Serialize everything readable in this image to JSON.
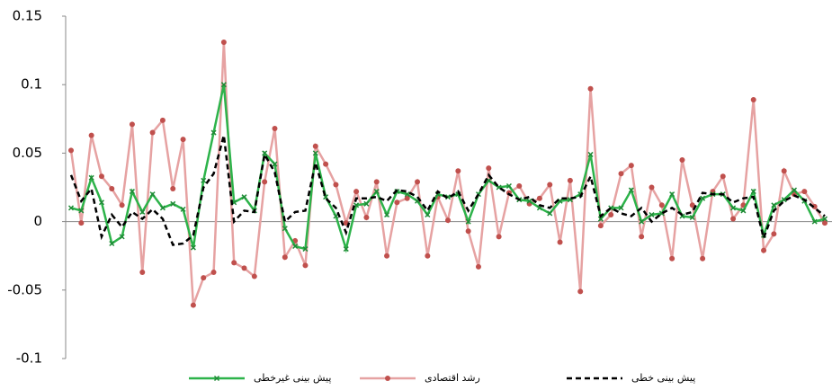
{
  "chart_data": {
    "type": "line",
    "ylim": [
      -0.1,
      0.15
    ],
    "yticks": [
      -0.1,
      -0.05,
      0,
      0.05,
      0.1,
      0.15
    ],
    "series": [
      {
        "name": "پیش بینی غیرخطی",
        "color": "#2db34a",
        "marker": "x",
        "dash": false,
        "values": [
          0.01,
          0.008,
          0.032,
          0.014,
          -0.016,
          -0.011,
          0.022,
          0.007,
          0.02,
          0.01,
          0.013,
          0.009,
          -0.019,
          0.03,
          0.065,
          0.1,
          0.014,
          0.018,
          0.008,
          0.05,
          0.042,
          -0.005,
          -0.018,
          -0.02,
          0.05,
          0.018,
          0.004,
          -0.02,
          0.012,
          0.013,
          0.022,
          0.005,
          0.022,
          0.02,
          0.015,
          0.005,
          0.02,
          0.018,
          0.02,
          0.0,
          0.02,
          0.03,
          0.025,
          0.026,
          0.016,
          0.015,
          0.01,
          0.006,
          0.015,
          0.016,
          0.02,
          0.049,
          0.002,
          0.01,
          0.01,
          0.023,
          0.0,
          0.005,
          0.006,
          0.02,
          0.004,
          0.003,
          0.017,
          0.02,
          0.02,
          0.01,
          0.008,
          0.022,
          -0.01,
          0.012,
          0.016,
          0.023,
          0.015,
          0.0,
          0.002
        ]
      },
      {
        "name": "رشد اقتصادی",
        "color": "#e6a2a2",
        "marker": "circle",
        "dash": false,
        "values": [
          0.052,
          -0.001,
          0.063,
          0.033,
          0.024,
          0.012,
          0.071,
          -0.037,
          0.065,
          0.074,
          0.024,
          0.06,
          -0.061,
          -0.041,
          -0.037,
          0.131,
          -0.03,
          -0.034,
          -0.04,
          0.029,
          0.068,
          -0.026,
          -0.014,
          -0.032,
          0.055,
          0.042,
          0.027,
          -0.001,
          0.022,
          0.003,
          0.029,
          -0.025,
          0.014,
          0.017,
          0.029,
          -0.025,
          0.018,
          0.001,
          0.037,
          -0.007,
          -0.033,
          0.039,
          -0.011,
          0.021,
          0.026,
          0.013,
          0.017,
          0.027,
          -0.015,
          0.03,
          -0.051,
          0.097,
          -0.003,
          0.005,
          0.035,
          0.041,
          -0.011,
          0.025,
          0.012,
          -0.027,
          0.045,
          0.012,
          -0.027,
          0.022,
          0.033,
          0.002,
          0.012,
          0.089,
          -0.021,
          -0.009,
          0.037,
          0.02,
          0.022,
          0.011,
          -0.001
        ]
      },
      {
        "name": "پیش بینی خطی",
        "color": "#000000",
        "marker": "none",
        "dash": true,
        "values": [
          0.034,
          0.015,
          0.024,
          -0.011,
          0.005,
          -0.004,
          0.007,
          0.002,
          0.009,
          0.002,
          -0.017,
          -0.016,
          -0.01,
          0.025,
          0.035,
          0.063,
          0.0,
          0.008,
          0.007,
          0.049,
          0.036,
          0.0,
          0.007,
          0.008,
          0.043,
          0.017,
          0.01,
          -0.008,
          0.017,
          0.017,
          0.018,
          0.015,
          0.023,
          0.022,
          0.018,
          0.008,
          0.022,
          0.017,
          0.022,
          0.008,
          0.02,
          0.034,
          0.025,
          0.02,
          0.016,
          0.018,
          0.012,
          0.01,
          0.017,
          0.017,
          0.018,
          0.033,
          0.004,
          0.01,
          0.006,
          0.004,
          0.01,
          0.0,
          0.006,
          0.01,
          0.005,
          0.007,
          0.021,
          0.02,
          0.02,
          0.014,
          0.017,
          0.018,
          -0.012,
          0.008,
          0.015,
          0.019,
          0.016,
          0.01,
          0.004
        ]
      }
    ]
  }
}
